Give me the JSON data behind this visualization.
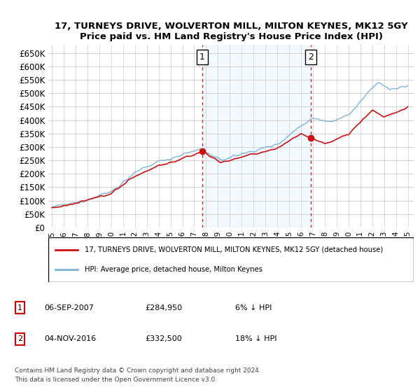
{
  "title": "17, TURNEYS DRIVE, WOLVERTON MILL, MILTON KEYNES, MK12 5GY",
  "subtitle": "Price paid vs. HM Land Registry's House Price Index (HPI)",
  "legend_line1": "17, TURNEYS DRIVE, WOLVERTON MILL, MILTON KEYNES, MK12 5GY (detached house)",
  "legend_line2": "HPI: Average price, detached house, Milton Keynes",
  "annotation1_date": "06-SEP-2007",
  "annotation1_price": "£284,950",
  "annotation1_hpi": "6% ↓ HPI",
  "annotation2_date": "04-NOV-2016",
  "annotation2_price": "£332,500",
  "annotation2_hpi": "18% ↓ HPI",
  "footer1": "Contains HM Land Registry data © Crown copyright and database right 2024.",
  "footer2": "This data is licensed under the Open Government Licence v3.0.",
  "hpi_color": "#7ab4d8",
  "price_color": "#cc1111",
  "vline_color": "#cc2222",
  "shade_color": "#dceeff",
  "ylim_min": 0,
  "ylim_max": 680000,
  "yticks": [
    0,
    50000,
    100000,
    150000,
    200000,
    250000,
    300000,
    350000,
    400000,
    450000,
    500000,
    550000,
    600000,
    650000
  ],
  "xlim_min": 1994.7,
  "xlim_max": 2025.5,
  "purchase1_year": 2007.68,
  "purchase1_price": 284950,
  "purchase2_year": 2016.84,
  "purchase2_price": 332500
}
